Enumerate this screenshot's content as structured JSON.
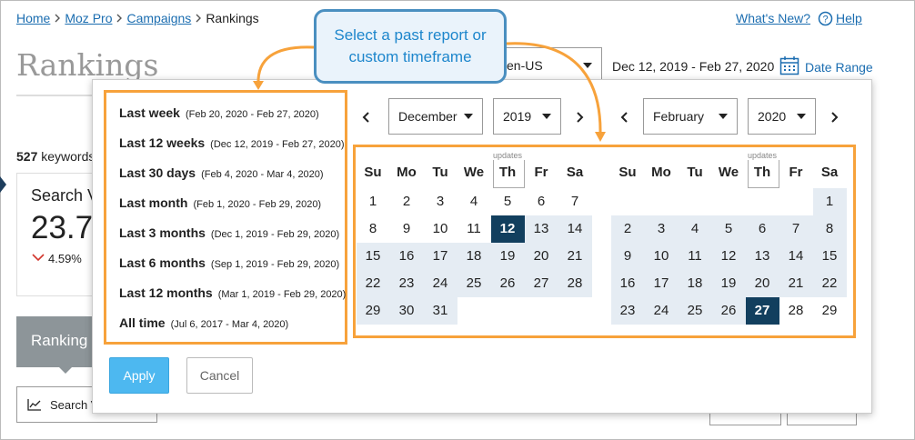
{
  "breadcrumb": [
    "Home",
    "Moz Pro",
    "Campaigns",
    "Rankings"
  ],
  "header_links": {
    "whats_new": "What's New?",
    "help": "Help"
  },
  "page_title": "Rankings",
  "locale": "en-US",
  "date_range": {
    "value": "Dec 12, 2019 - Feb 27, 2020",
    "button": "Date Range"
  },
  "keywords": {
    "count": 527,
    "label": "keywords"
  },
  "metric_card": {
    "title": "Search V",
    "value": "23.7",
    "change": "4.59%"
  },
  "tab": "Ranking",
  "button": "Search V",
  "callout": "Select a past report or custom timeframe",
  "presets": [
    {
      "label": "Last week",
      "range": "(Feb 20, 2020 - Feb 27, 2020)"
    },
    {
      "label": "Last 12 weeks",
      "range": "(Dec 12, 2019 - Feb 27, 2020)"
    },
    {
      "label": "Last 30 days",
      "range": "(Feb 4, 2020 - Mar 4, 2020)"
    },
    {
      "label": "Last month",
      "range": "(Feb 1, 2020 - Feb 29, 2020)"
    },
    {
      "label": "Last 3 months",
      "range": "(Dec 1, 2019 - Feb 29, 2020)"
    },
    {
      "label": "Last 6 months",
      "range": "(Sep 1, 2019 - Feb 29, 2020)"
    },
    {
      "label": "Last 12 months",
      "range": "(Mar 1, 2019 - Feb 29, 2020)"
    },
    {
      "label": "All time",
      "range": "(Jul 6, 2017 - Mar 4, 2020)"
    }
  ],
  "actions": {
    "apply": "Apply",
    "cancel": "Cancel"
  },
  "weekdays": [
    "Su",
    "Mo",
    "Tu",
    "We",
    "Th",
    "Fr",
    "Sa"
  ],
  "updates_label": "updates",
  "calendars": [
    {
      "month": "December",
      "year": 2019,
      "weeks": [
        [
          1,
          2,
          3,
          4,
          5,
          6,
          7
        ],
        [
          8,
          9,
          10,
          11,
          12,
          13,
          14
        ],
        [
          15,
          16,
          17,
          18,
          19,
          20,
          21
        ],
        [
          22,
          23,
          24,
          25,
          26,
          27,
          28
        ],
        [
          29,
          30,
          31,
          null,
          null,
          null,
          null
        ]
      ]
    },
    {
      "month": "February",
      "year": 2020,
      "weeks": [
        [
          null,
          null,
          null,
          null,
          null,
          null,
          1
        ],
        [
          2,
          3,
          4,
          5,
          6,
          7,
          8
        ],
        [
          9,
          10,
          11,
          12,
          13,
          14,
          15
        ],
        [
          16,
          17,
          18,
          19,
          20,
          21,
          22
        ],
        [
          23,
          24,
          25,
          26,
          27,
          28,
          29
        ]
      ]
    }
  ]
}
